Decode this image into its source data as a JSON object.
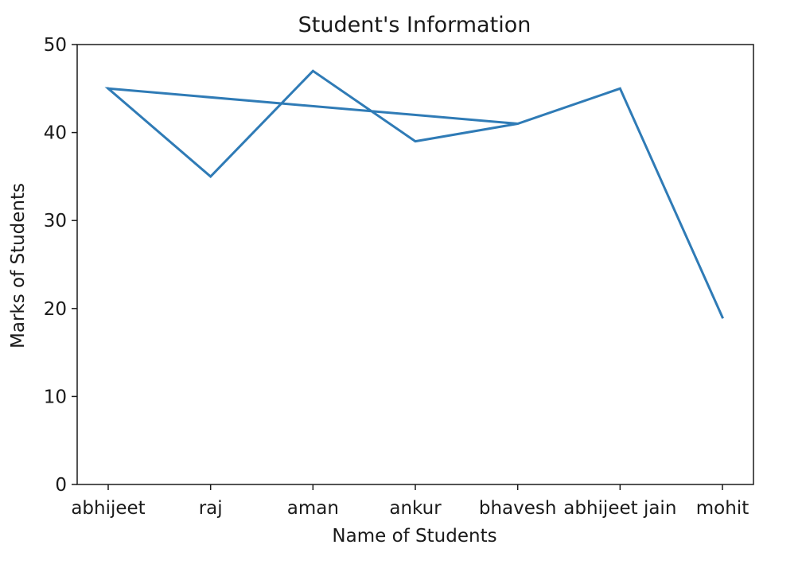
{
  "chart_data": {
    "type": "line",
    "title": "Student's Information",
    "xlabel": "Name of Students",
    "ylabel": "Marks of Students",
    "categories": [
      "abhijeet",
      "raj",
      "aman",
      "ankur",
      "bhavesh",
      "abhijeet jain",
      "mohit"
    ],
    "ylim": [
      0,
      50
    ],
    "yticks": [
      0,
      10,
      20,
      30,
      40,
      50
    ],
    "grid": false,
    "series": [
      {
        "color": "#2f7bb6",
        "points": [
          {
            "x": "abhijeet",
            "y": 45
          },
          {
            "x": "raj",
            "y": 35
          },
          {
            "x": "aman",
            "y": 47
          },
          {
            "x": "ankur",
            "y": 39
          },
          {
            "x": "bhavesh",
            "y": 41
          },
          {
            "x": "abhijeet",
            "y": 45
          },
          {
            "x": "raj",
            "y": 35
          },
          {
            "x": "aman",
            "y": 47
          },
          {
            "x": "ankur",
            "y": 39
          },
          {
            "x": "bhavesh",
            "y": 41
          },
          {
            "x": "abhijeet jain",
            "y": 45
          },
          {
            "x": "mohit",
            "y": 19
          }
        ]
      }
    ]
  }
}
